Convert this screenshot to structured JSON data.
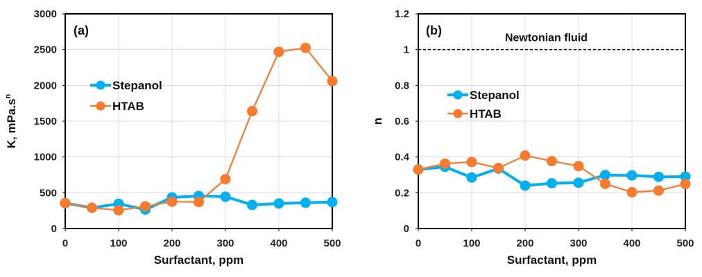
{
  "chart_data": [
    {
      "type": "line",
      "panel_label": "(a)",
      "title": "",
      "xlabel": "Surfactant, ppm",
      "ylabel": "K, mPa.s",
      "ylabel_superscript": "n",
      "x": [
        0,
        50,
        100,
        150,
        200,
        250,
        300,
        350,
        400,
        450,
        500
      ],
      "xlim": [
        0,
        500
      ],
      "ylim": [
        0,
        3000
      ],
      "xticks": [
        0,
        100,
        200,
        300,
        400,
        500
      ],
      "yticks": [
        0,
        500,
        1000,
        1500,
        2000,
        2500,
        3000
      ],
      "grid": true,
      "legend_position": "upper-left",
      "series": [
        {
          "name": "Stepanol",
          "color": "#00B0F0",
          "values": [
            355,
            290,
            345,
            265,
            435,
            455,
            445,
            330,
            350,
            360,
            370
          ]
        },
        {
          "name": "HTAB",
          "color": "#F97A2C",
          "values": [
            355,
            290,
            255,
            310,
            375,
            370,
            690,
            1640,
            2470,
            2525,
            2060
          ]
        }
      ],
      "annotations": []
    },
    {
      "type": "line",
      "panel_label": "(b)",
      "title": "",
      "xlabel": "Surfactant, ppm",
      "ylabel": "n",
      "ylabel_superscript": "",
      "x": [
        0,
        50,
        100,
        150,
        200,
        250,
        300,
        350,
        400,
        450,
        500
      ],
      "xlim": [
        0,
        500
      ],
      "ylim": [
        0,
        1.2
      ],
      "xticks": [
        0,
        100,
        200,
        300,
        400,
        500
      ],
      "yticks": [
        0,
        0.2,
        0.4,
        0.6,
        0.8,
        1,
        1.2
      ],
      "grid": true,
      "legend_position": "middle-left",
      "series": [
        {
          "name": "Stepanol",
          "color": "#00B0F0",
          "values": [
            0.33,
            0.345,
            0.285,
            0.335,
            0.24,
            0.253,
            0.256,
            0.299,
            0.297,
            0.289,
            0.29
          ]
        },
        {
          "name": "HTAB",
          "color": "#F97A2C",
          "values": [
            0.33,
            0.363,
            0.372,
            0.338,
            0.408,
            0.377,
            0.349,
            0.25,
            0.203,
            0.212,
            0.249
          ]
        }
      ],
      "annotations": [
        {
          "text": "Newtonian fluid",
          "reference_line_y": 1,
          "style": "dashed",
          "color": "#000000"
        }
      ]
    }
  ]
}
